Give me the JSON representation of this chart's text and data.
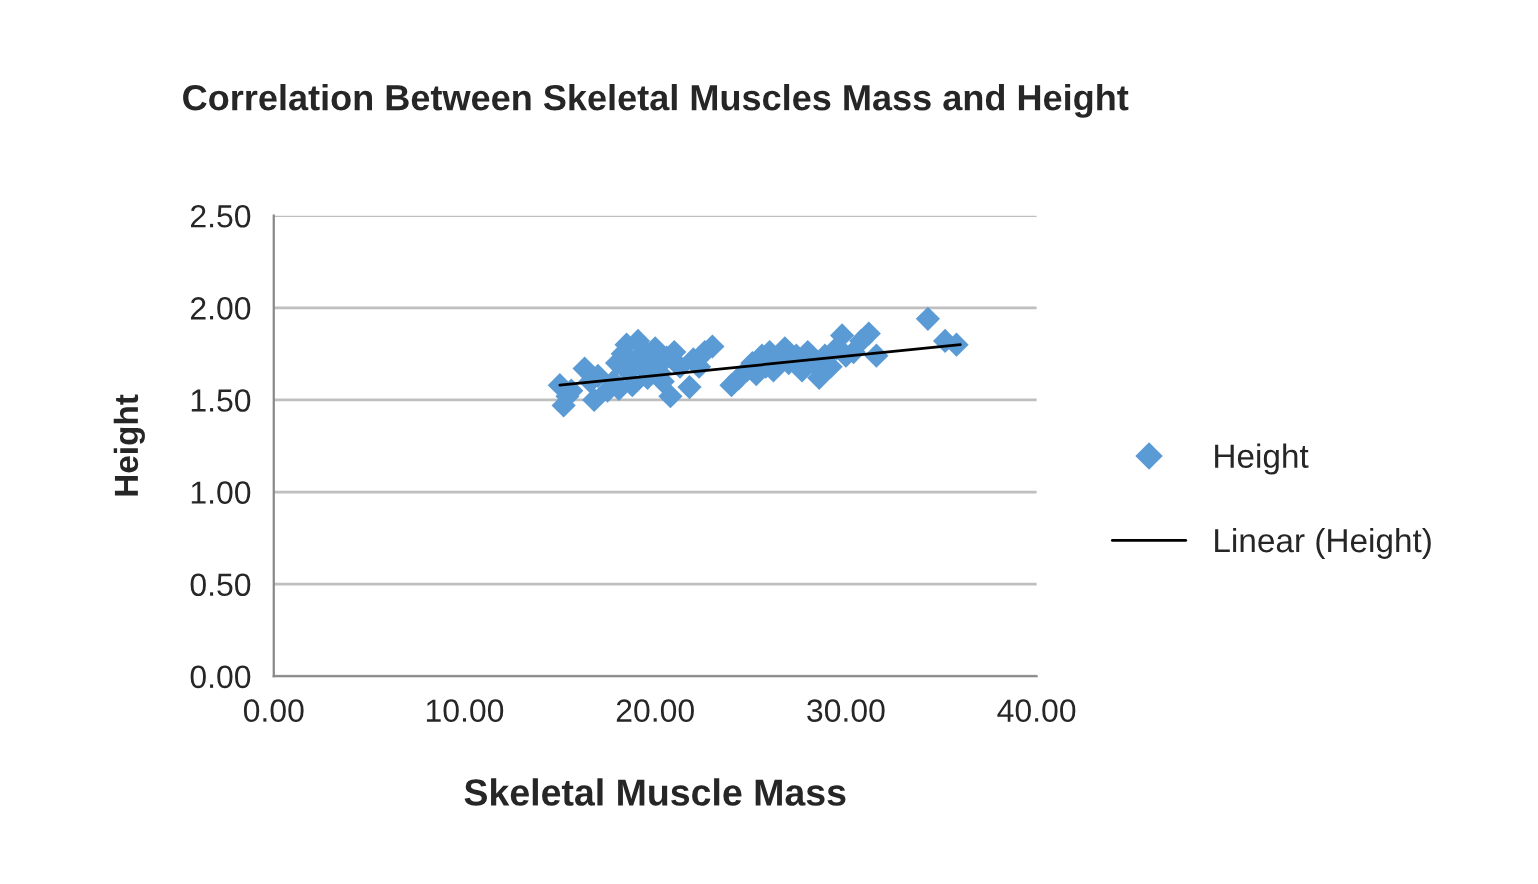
{
  "chart_data": {
    "type": "scatter",
    "title": "Correlation Between Skeletal Muscles Mass and Height",
    "xlabel": "Skeletal Muscle Mass",
    "ylabel": "Height",
    "xlim": [
      0,
      40
    ],
    "ylim": [
      0,
      2.5
    ],
    "xticks": [
      {
        "value": 0,
        "label": "0.00"
      },
      {
        "value": 10,
        "label": "10.00"
      },
      {
        "value": 20,
        "label": "20.00"
      },
      {
        "value": 30,
        "label": "30.00"
      },
      {
        "value": 40,
        "label": "40.00"
      }
    ],
    "yticks": [
      {
        "value": 0,
        "label": "0.00"
      },
      {
        "value": 0.5,
        "label": "0.50"
      },
      {
        "value": 1,
        "label": "1.00"
      },
      {
        "value": 1.5,
        "label": "1.50"
      },
      {
        "value": 2,
        "label": "2.00"
      },
      {
        "value": 2.5,
        "label": "2.50"
      }
    ],
    "grid": "y",
    "legend": "right",
    "marker": "diamond",
    "series": [
      {
        "name": "Height",
        "color": "#5b9bd5",
        "x": [
          15.0,
          15.2,
          15.4,
          15.6,
          16.3,
          16.6,
          16.8,
          17.0,
          17.5,
          17.8,
          18.0,
          18.1,
          18.3,
          18.5,
          18.6,
          18.8,
          19.0,
          19.1,
          19.3,
          19.5,
          19.6,
          19.8,
          20.0,
          20.2,
          20.4,
          20.6,
          20.8,
          21.0,
          21.3,
          21.8,
          22.0,
          22.3,
          22.6,
          23.0,
          24.0,
          24.4,
          24.8,
          25.1,
          25.3,
          25.6,
          25.8,
          26.0,
          26.2,
          26.5,
          26.8,
          27.0,
          27.4,
          27.7,
          28.0,
          28.3,
          28.6,
          28.9,
          29.2,
          29.5,
          29.8,
          30.0,
          30.4,
          30.8,
          31.2,
          31.6,
          34.3,
          35.2,
          35.8
        ],
        "values": [
          1.58,
          1.47,
          1.52,
          1.55,
          1.67,
          1.6,
          1.5,
          1.63,
          1.55,
          1.6,
          1.7,
          1.56,
          1.75,
          1.8,
          1.65,
          1.58,
          1.72,
          1.82,
          1.68,
          1.76,
          1.62,
          1.7,
          1.78,
          1.65,
          1.6,
          1.73,
          1.52,
          1.76,
          1.68,
          1.57,
          1.72,
          1.68,
          1.76,
          1.79,
          1.58,
          1.62,
          1.66,
          1.7,
          1.64,
          1.74,
          1.68,
          1.76,
          1.66,
          1.72,
          1.78,
          1.7,
          1.74,
          1.66,
          1.76,
          1.7,
          1.62,
          1.74,
          1.68,
          1.78,
          1.85,
          1.74,
          1.76,
          1.82,
          1.86,
          1.74,
          1.94,
          1.82,
          1.8
        ]
      },
      {
        "name": "Linear (Height)",
        "type": "line",
        "color": "#000000",
        "marker": "none",
        "line_style": "solid",
        "x": [
          15.0,
          36.0
        ],
        "values": [
          1.58,
          1.8
        ]
      }
    ]
  }
}
